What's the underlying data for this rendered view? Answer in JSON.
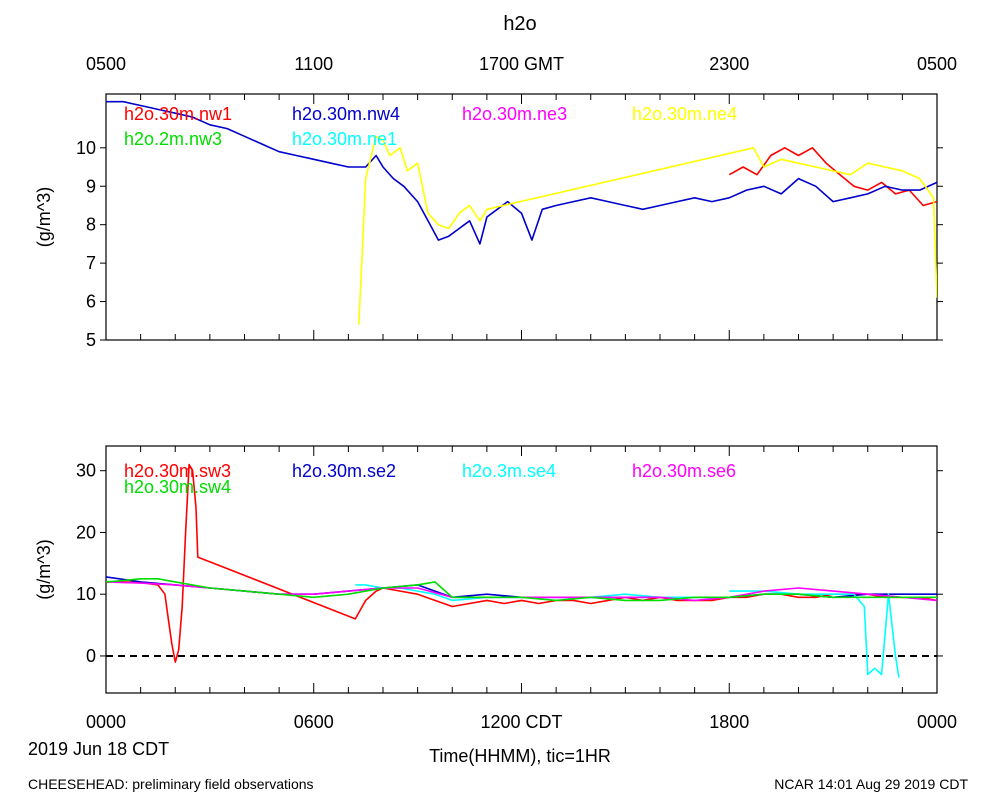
{
  "title": "h2o",
  "top_axis": {
    "labels": [
      "0500",
      "1100",
      "1700 GMT",
      "2300",
      "0500"
    ]
  },
  "bottom_axis": {
    "labels": [
      "0000",
      "0600",
      "1200 CDT",
      "1800",
      "0000"
    ],
    "date_label": "2019 Jun 18 CDT",
    "xlabel": "Time(HHMM), tic=1HR"
  },
  "footer": {
    "left": "CHEESEHEAD: preliminary field observations",
    "right": "NCAR 14:01 Aug 29 2019 CDT"
  },
  "colors": {
    "red": "#ff0000",
    "blue": "#0000cc",
    "magenta": "#ff00ff",
    "yellow": "#ffff00",
    "green": "#00dd00",
    "cyan": "#00ffff"
  },
  "chart_data": [
    {
      "type": "line",
      "ylabel": "(g/m^3)",
      "x_unit": "hours since 0000 CDT",
      "xlim": [
        0,
        24
      ],
      "ylim": [
        5,
        11.4
      ],
      "yticks": [
        5,
        6,
        7,
        8,
        9,
        10
      ],
      "grid": false,
      "legend": "top",
      "series": [
        {
          "name": "h2o.30m.nw1",
          "color": "#ff0000",
          "x": [
            18.0,
            18.4,
            18.8,
            19.2,
            19.6,
            20.0,
            20.4,
            20.8,
            21.2,
            21.6,
            22.0,
            22.4,
            22.8,
            23.2,
            23.6,
            24.0
          ],
          "y": [
            9.3,
            9.5,
            9.3,
            9.8,
            10.0,
            9.8,
            10.0,
            9.6,
            9.3,
            9.0,
            8.9,
            9.1,
            8.8,
            8.9,
            8.5,
            8.6
          ]
        },
        {
          "name": "h2o.30m.nw4",
          "color": "#0000cc",
          "x": [
            0,
            0.5,
            1.0,
            1.5,
            2.0,
            2.5,
            3.0,
            3.5,
            4.0,
            4.5,
            5.0,
            5.5,
            6.0,
            6.5,
            7.0,
            7.5,
            7.8,
            8.0,
            8.3,
            8.6,
            9.0,
            9.3,
            9.6,
            9.9,
            10.2,
            10.5,
            10.8,
            11.0,
            11.3,
            11.6,
            12.0,
            12.3,
            12.6,
            13.0,
            13.5,
            14.0,
            14.5,
            15.0,
            15.5,
            16.0,
            16.5,
            17.0,
            17.5,
            18.0,
            18.5,
            19.0,
            19.5,
            20.0,
            20.5,
            21.0,
            21.5,
            22.0,
            22.5,
            23.0,
            23.5,
            24.0
          ],
          "y": [
            11.2,
            11.2,
            11.1,
            11.0,
            10.9,
            10.8,
            10.6,
            10.5,
            10.3,
            10.1,
            9.9,
            9.8,
            9.7,
            9.6,
            9.5,
            9.5,
            9.8,
            9.5,
            9.2,
            9.0,
            8.6,
            8.1,
            7.6,
            7.7,
            7.9,
            8.1,
            7.5,
            8.2,
            8.4,
            8.6,
            8.3,
            7.6,
            8.4,
            8.5,
            8.6,
            8.7,
            8.6,
            8.5,
            8.4,
            8.5,
            8.6,
            8.7,
            8.6,
            8.7,
            8.9,
            9.0,
            8.8,
            9.2,
            9.0,
            8.6,
            8.7,
            8.8,
            9.0,
            8.9,
            8.9,
            9.1
          ]
        },
        {
          "name": "h2o.30m.ne3",
          "color": "#ff00ff",
          "x": [],
          "y": []
        },
        {
          "name": "h2o.30m.ne4",
          "color": "#ffff00",
          "x": [
            7.3,
            7.5,
            7.8,
            8.0,
            8.2,
            8.5,
            8.7,
            9.0,
            9.3,
            9.6,
            9.9,
            10.2,
            10.5,
            10.8,
            11.0,
            18.7,
            19.0,
            19.5,
            20.0,
            20.5,
            21.0,
            21.5,
            22.0,
            22.5,
            23.0,
            23.5,
            23.9,
            24.0
          ],
          "y": [
            5.4,
            9.2,
            10.3,
            10.2,
            9.8,
            10.0,
            9.4,
            9.6,
            8.3,
            8.0,
            7.9,
            8.3,
            8.5,
            8.1,
            8.4,
            10.0,
            9.5,
            9.7,
            9.6,
            9.5,
            9.4,
            9.3,
            9.6,
            9.5,
            9.4,
            9.2,
            8.7,
            6.1
          ]
        },
        {
          "name": "h2o.2m.nw3",
          "color": "#00dd00",
          "x": [],
          "y": []
        },
        {
          "name": "h2o.30m.ne1",
          "color": "#00ffff",
          "x": [],
          "y": []
        }
      ]
    },
    {
      "type": "line",
      "ylabel": "(g/m^3)",
      "x_unit": "hours since 0000 CDT",
      "xlim": [
        0,
        24
      ],
      "ylim": [
        -6,
        34
      ],
      "yticks": [
        0,
        10,
        20,
        30
      ],
      "reference_line": 0,
      "grid": false,
      "legend": "top",
      "series": [
        {
          "name": "h2o.30m.sw3",
          "color": "#ff0000",
          "x": [
            0,
            0.5,
            1.0,
            1.5,
            1.7,
            1.8,
            1.9,
            2.0,
            2.1,
            2.2,
            2.3,
            2.4,
            2.5,
            2.6,
            2.65,
            7.2,
            7.5,
            7.8,
            8.0,
            8.5,
            9.0,
            9.5,
            10.0,
            10.5,
            11.0,
            11.5,
            12.0,
            12.5,
            13.0,
            13.5,
            14.0,
            14.5,
            15.0,
            15.5,
            16.0,
            16.5,
            17.0,
            17.5,
            18.0,
            18.5,
            19.0,
            19.5,
            20.0,
            20.5,
            21.0,
            21.5,
            22.0,
            22.5,
            23.0,
            23.5,
            24.0
          ],
          "y": [
            12.0,
            12.0,
            11.9,
            11.5,
            10.0,
            6.0,
            2.0,
            -1.0,
            1.0,
            8.0,
            20.0,
            31.0,
            30.0,
            24.0,
            16.0,
            6.0,
            9.0,
            10.5,
            11.0,
            10.5,
            10.0,
            9.0,
            8.0,
            8.5,
            9.0,
            8.5,
            9.0,
            8.5,
            9.0,
            9.0,
            8.5,
            9.0,
            9.5,
            9.0,
            9.5,
            9.0,
            9.0,
            9.0,
            9.5,
            9.5,
            10.0,
            10.0,
            9.5,
            9.5,
            10.0,
            10.0,
            10.0,
            9.5,
            9.5,
            9.5,
            9.0
          ]
        },
        {
          "name": "h2o.30m.se2",
          "color": "#0000cc",
          "x": [
            0,
            1,
            2,
            3,
            4,
            5,
            6,
            7,
            8,
            9,
            9.5,
            10,
            11,
            12,
            13,
            14,
            15,
            16,
            17,
            18,
            19,
            20,
            21,
            22,
            23,
            24
          ],
          "y": [
            12.8,
            12.0,
            11.5,
            11.0,
            10.5,
            10.0,
            10.0,
            10.5,
            11.0,
            11.5,
            10.5,
            9.5,
            10.0,
            9.5,
            9.5,
            9.5,
            9.5,
            9.5,
            9.5,
            9.5,
            10.0,
            10.0,
            9.5,
            10.0,
            10.0,
            10.0
          ]
        },
        {
          "name": "h2o.3m.se4",
          "color": "#00ffff",
          "x": [
            7.2,
            7.5,
            8.0,
            8.5,
            9.0,
            9.5,
            10.0,
            11.0,
            12.0,
            13.0,
            14.0,
            15.0,
            16.0,
            17.0,
            17.5,
            18.0,
            19.0,
            20.0,
            21.0,
            21.6,
            21.9,
            22.0,
            22.2,
            22.4,
            22.6,
            22.8,
            22.9
          ],
          "y": [
            11.5,
            11.5,
            11.0,
            11.0,
            10.5,
            10.0,
            9.0,
            9.5,
            9.5,
            9.5,
            9.5,
            10.0,
            9.5,
            9.5,
            null,
            10.5,
            10.5,
            10.0,
            10.0,
            10.0,
            8.0,
            -3.0,
            -2.0,
            -3.0,
            10.0,
            0.0,
            -3.5
          ]
        },
        {
          "name": "h2o.30m.se6",
          "color": "#ff00ff",
          "x": [
            0,
            1,
            2,
            3,
            4,
            5,
            6,
            7,
            8,
            9,
            10,
            11,
            12,
            13,
            14,
            15,
            16,
            17,
            18,
            19,
            20,
            21,
            22,
            23,
            24
          ],
          "y": [
            12.0,
            11.8,
            11.5,
            11.0,
            10.5,
            10.0,
            10.0,
            10.5,
            11.0,
            11.0,
            9.5,
            9.5,
            9.5,
            9.5,
            9.5,
            9.5,
            9.5,
            9.0,
            9.5,
            10.5,
            11.0,
            10.5,
            10.0,
            9.5,
            9.0
          ]
        },
        {
          "name": "h2o.30m.sw4",
          "color": "#00dd00",
          "x": [
            0,
            0.5,
            1.0,
            1.5,
            2.0,
            3.0,
            4.0,
            5.0,
            6.0,
            7.0,
            8.0,
            9.0,
            9.5,
            10.0,
            11.0,
            12.0,
            13.0,
            14.0,
            15.0,
            16.0,
            17.0,
            18.0,
            19.0,
            20.0,
            21.0,
            22.0,
            23.0,
            24.0
          ],
          "y": [
            12.0,
            12.2,
            12.5,
            12.5,
            12.0,
            11.0,
            10.5,
            10.0,
            9.5,
            10.0,
            11.0,
            11.5,
            12.0,
            9.5,
            9.5,
            9.5,
            9.0,
            9.5,
            9.0,
            9.0,
            9.5,
            9.5,
            10.0,
            10.0,
            9.5,
            9.5,
            9.5,
            9.5
          ]
        }
      ]
    }
  ]
}
